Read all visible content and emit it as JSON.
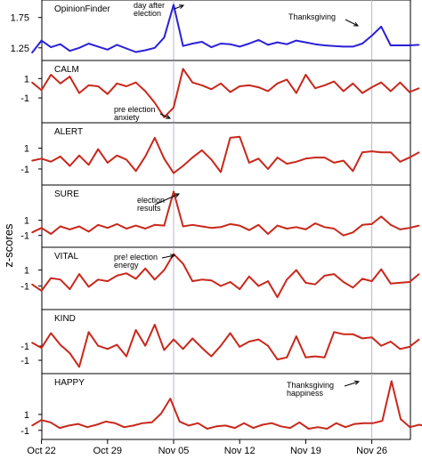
{
  "figure": {
    "ylabel": "z-scores",
    "colors": {
      "opinionfinder": "#2b20d8",
      "mood": "#c8281c",
      "marker": "#b8b8c8",
      "axis": "#000000"
    }
  },
  "x_axis": {
    "tick_labels": [
      "Oct 22",
      "Oct 29",
      "Nov 05",
      "Nov 12",
      "Nov 19",
      "Nov 26"
    ],
    "tick_days": [
      1,
      8,
      15,
      22,
      29,
      36
    ]
  },
  "markers": {
    "election_day": 15,
    "thanksgiving_day": 36
  },
  "chart_data": [
    {
      "type": "line",
      "title": "OpinionFinder",
      "yticks": [
        1.25,
        1.75
      ],
      "ytick_labels": [
        "1.25",
        "1.75"
      ],
      "ylim": [
        1.1,
        1.98
      ],
      "series": [
        {
          "values": [
            1.17,
            1.37,
            1.26,
            1.31,
            1.2,
            1.25,
            1.32,
            1.27,
            1.22,
            1.3,
            1.24,
            1.18,
            1.21,
            1.25,
            1.42,
            1.96,
            1.28,
            1.32,
            1.35,
            1.26,
            1.32,
            1.31,
            1.27,
            1.32,
            1.38,
            1.3,
            1.34,
            1.31,
            1.37,
            1.34,
            1.31,
            1.29,
            1.28,
            1.27,
            1.27,
            1.32,
            1.45,
            1.6,
            1.29,
            1.29,
            1.29,
            1.3
          ]
        }
      ],
      "annotations": [
        {
          "text": [
            "day after",
            "election"
          ]
        },
        {
          "text": [
            "Thanksgiving"
          ]
        }
      ]
    },
    {
      "type": "line",
      "title": "CALM",
      "yticks": [
        1,
        -1
      ],
      "ytick_labels": [
        "1",
        "-1"
      ],
      "ylim": [
        -3.2,
        2.5
      ],
      "series": [
        {
          "values": [
            0.6,
            -0.2,
            1.4,
            0.5,
            1.2,
            -0.5,
            0.3,
            0.2,
            -0.6,
            0.5,
            0.2,
            0.6,
            -0.3,
            -1.5,
            -3.0,
            -2.0,
            2.0,
            0.6,
            0.3,
            -0.1,
            0.5,
            -0.4,
            0.2,
            0.3,
            0.1,
            -0.3,
            0.5,
            0.9,
            -0.5,
            1.4,
            0.0,
            0.3,
            0.7,
            -0.3,
            0.5,
            -0.5,
            0.1,
            0.6,
            -0.3,
            0.6,
            -0.4,
            0.0
          ]
        }
      ],
      "annotations": [
        {
          "text": [
            "pre election",
            "anxiety"
          ]
        }
      ]
    },
    {
      "type": "line",
      "title": "ALERT",
      "yticks": [
        1,
        -1
      ],
      "ytick_labels": [
        "1",
        "-1"
      ],
      "ylim": [
        -2.2,
        3.1
      ],
      "series": [
        {
          "values": [
            -0.2,
            0.0,
            -0.3,
            0.2,
            -0.7,
            0.3,
            -0.6,
            0.9,
            -0.4,
            0.3,
            -0.1,
            -1.2,
            0.2,
            2.0,
            0.0,
            -1.4,
            -0.7,
            0.1,
            0.8,
            -0.1,
            -1.3,
            2.0,
            2.1,
            -0.4,
            0.0,
            -1.0,
            0.1,
            -0.5,
            -0.3,
            0.0,
            0.1,
            0.1,
            -0.4,
            -0.2,
            -1.2,
            0.6,
            0.7,
            0.6,
            0.6,
            -0.3,
            0.1,
            0.6
          ]
        }
      ]
    },
    {
      "type": "line",
      "title": "SURE",
      "yticks": [
        1,
        -1
      ],
      "ytick_labels": [
        "1",
        "-1"
      ],
      "ylim": [
        -2.1,
        5.2
      ],
      "series": [
        {
          "values": [
            -0.6,
            0.0,
            -0.8,
            0.2,
            -0.2,
            0.2,
            -0.5,
            0.4,
            0.0,
            0.5,
            -0.1,
            0.3,
            -0.1,
            0.4,
            0.3,
            4.8,
            0.2,
            0.4,
            0.2,
            0.0,
            0.1,
            0.5,
            0.3,
            -0.3,
            0.4,
            -0.8,
            0.3,
            -0.1,
            0.1,
            -0.2,
            0.6,
            0.1,
            -0.1,
            -1.0,
            -0.6,
            0.4,
            0.5,
            1.5,
            0.4,
            -0.2,
            0.0,
            0.3
          ]
        }
      ],
      "annotations": [
        {
          "text": [
            "election",
            "results"
          ]
        }
      ]
    },
    {
      "type": "line",
      "title": "VITAL",
      "yticks": [
        1,
        -1
      ],
      "ytick_labels": [
        "1",
        "-1"
      ],
      "ylim": [
        -3.5,
        3.4
      ],
      "series": [
        {
          "values": [
            -0.8,
            -1.6,
            0.0,
            -0.2,
            -1.4,
            0.5,
            -1.1,
            -0.2,
            -0.4,
            0.3,
            0.6,
            -0.1,
            1.2,
            -0.2,
            1.0,
            3.0,
            1.8,
            -0.4,
            -0.2,
            -0.3,
            -1.0,
            -0.5,
            -1.4,
            0.2,
            -1.0,
            -0.4,
            -2.4,
            -0.2,
            1.0,
            -0.6,
            -0.8,
            0.3,
            0.5,
            -0.5,
            -1.2,
            -0.1,
            -0.4,
            1.1,
            -0.7,
            -0.6,
            -0.5,
            0.5
          ]
        }
      ],
      "annotations": [
        {
          "text": [
            "pre! election",
            "energy"
          ]
        }
      ]
    },
    {
      "type": "line",
      "title": "KIND",
      "yticks": [
        -1,
        -1
      ],
      "ytick_labels": [
        "-1",
        "-1"
      ],
      "ylim": [
        -2.6,
        2.8
      ],
      "series": [
        {
          "values": [
            0.0,
            -0.5,
            0.9,
            -0.2,
            -1.0,
            -2.3,
            1.0,
            -0.3,
            -0.6,
            -0.2,
            -1.3,
            1.2,
            -0.3,
            1.7,
            -0.7,
            0.3,
            -0.6,
            0.4,
            -0.5,
            -1.3,
            -0.3,
            0.9,
            -0.4,
            0.1,
            0.3,
            -0.3,
            -1.6,
            -1.4,
            0.6,
            -1.4,
            -1.3,
            -1.4,
            1.0,
            0.8,
            0.8,
            0.4,
            0.5,
            -0.3,
            0.1,
            -0.6,
            -0.4,
            0.3
          ]
        }
      ]
    },
    {
      "type": "line",
      "title": "HAPPY",
      "yticks": [
        1,
        -1
      ],
      "ytick_labels": [
        "1",
        "-1"
      ],
      "ylim": [
        -1.7,
        5.7
      ],
      "series": [
        {
          "values": [
            -0.4,
            0.3,
            0.0,
            -0.7,
            -0.4,
            -0.2,
            -0.6,
            -0.3,
            0.1,
            -0.1,
            -0.6,
            -0.4,
            -0.1,
            0.0,
            1.1,
            3.0,
            0.1,
            -0.4,
            -0.1,
            -0.8,
            -0.5,
            -0.4,
            -0.7,
            -0.1,
            -0.7,
            -0.3,
            -0.1,
            -0.5,
            -0.7,
            0.0,
            -0.8,
            -0.6,
            -0.8,
            -0.1,
            -0.6,
            -0.2,
            -0.1,
            -0.1,
            0.2,
            5.2,
            0.4,
            -0.6,
            -0.3,
            -0.5
          ]
        }
      ],
      "annotations": [
        {
          "text": [
            "Thanksgiving",
            "happiness"
          ]
        }
      ]
    }
  ]
}
